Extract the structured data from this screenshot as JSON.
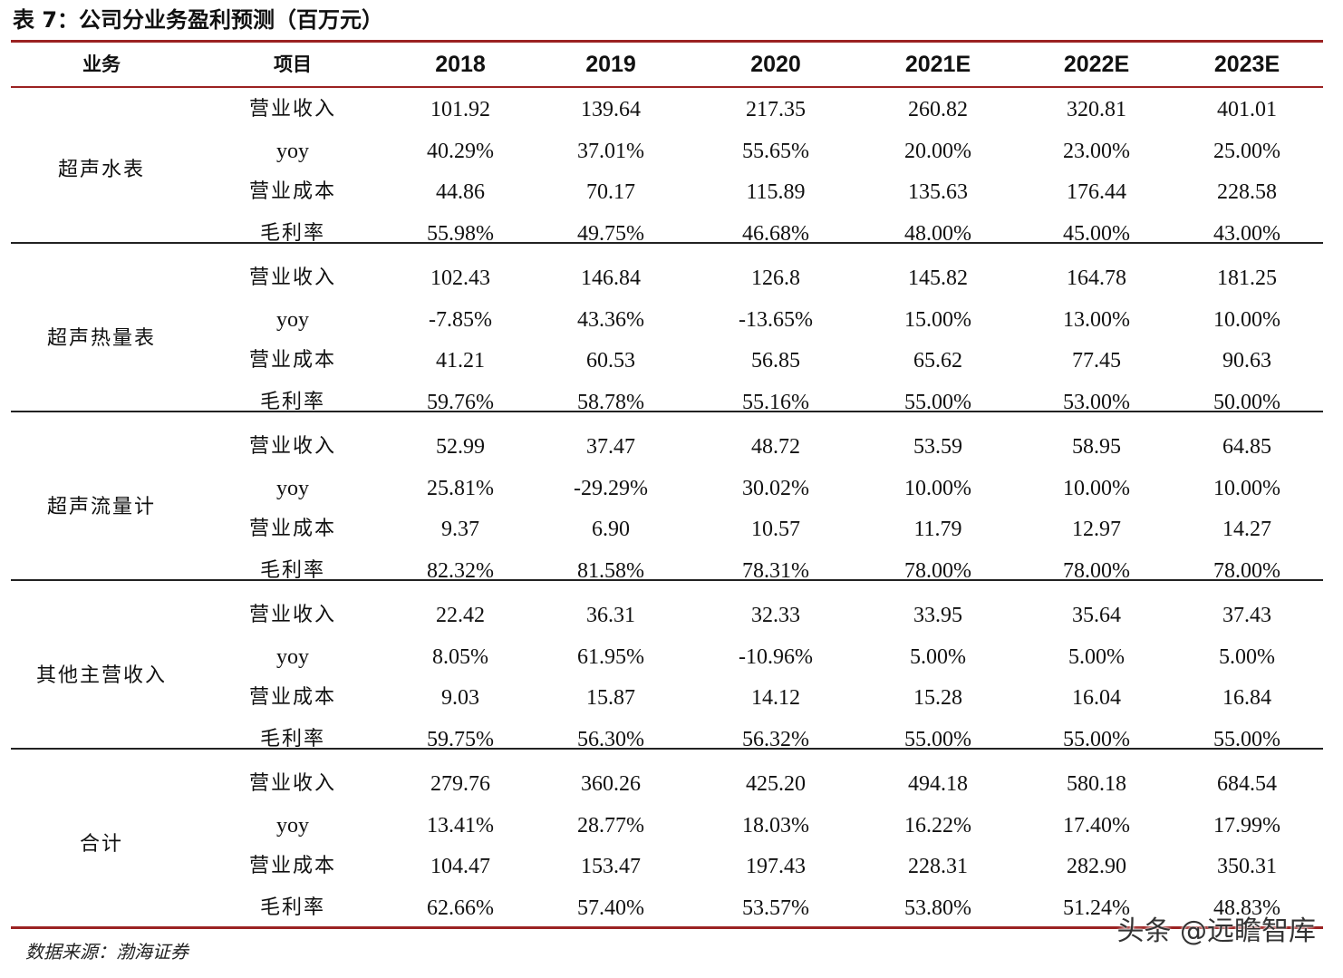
{
  "title": "表 7：公司分业务盈利预测（百万元）",
  "header": {
    "business": "业务",
    "item": "项目",
    "years": [
      "2018",
      "2019",
      "2020",
      "2021E",
      "2022E",
      "2023E"
    ]
  },
  "groups": [
    {
      "name": "超声水表",
      "rows": [
        {
          "item": "营业收入",
          "values": [
            "101.92",
            "139.64",
            "217.35",
            "260.82",
            "320.81",
            "401.01"
          ]
        },
        {
          "item": "yoy",
          "values": [
            "40.29%",
            "37.01%",
            "55.65%",
            "20.00%",
            "23.00%",
            "25.00%"
          ]
        },
        {
          "item": "营业成本",
          "values": [
            "44.86",
            "70.17",
            "115.89",
            "135.63",
            "176.44",
            "228.58"
          ]
        },
        {
          "item": "毛利率",
          "values": [
            "55.98%",
            "49.75%",
            "46.68%",
            "48.00%",
            "45.00%",
            "43.00%"
          ]
        }
      ]
    },
    {
      "name": "超声热量表",
      "rows": [
        {
          "item": "营业收入",
          "values": [
            "102.43",
            "146.84",
            "126.8",
            "145.82",
            "164.78",
            "181.25"
          ]
        },
        {
          "item": "yoy",
          "values": [
            "-7.85%",
            "43.36%",
            "-13.65%",
            "15.00%",
            "13.00%",
            "10.00%"
          ]
        },
        {
          "item": "营业成本",
          "values": [
            "41.21",
            "60.53",
            "56.85",
            "65.62",
            "77.45",
            "90.63"
          ]
        },
        {
          "item": "毛利率",
          "values": [
            "59.76%",
            "58.78%",
            "55.16%",
            "55.00%",
            "53.00%",
            "50.00%"
          ]
        }
      ]
    },
    {
      "name": "超声流量计",
      "rows": [
        {
          "item": "营业收入",
          "values": [
            "52.99",
            "37.47",
            "48.72",
            "53.59",
            "58.95",
            "64.85"
          ]
        },
        {
          "item": "yoy",
          "values": [
            "25.81%",
            "-29.29%",
            "30.02%",
            "10.00%",
            "10.00%",
            "10.00%"
          ]
        },
        {
          "item": "营业成本",
          "values": [
            "9.37",
            "6.90",
            "10.57",
            "11.79",
            "12.97",
            "14.27"
          ]
        },
        {
          "item": "毛利率",
          "values": [
            "82.32%",
            "81.58%",
            "78.31%",
            "78.00%",
            "78.00%",
            "78.00%"
          ]
        }
      ]
    },
    {
      "name": "其他主营收入",
      "rows": [
        {
          "item": "营业收入",
          "values": [
            "22.42",
            "36.31",
            "32.33",
            "33.95",
            "35.64",
            "37.43"
          ]
        },
        {
          "item": "yoy",
          "values": [
            "8.05%",
            "61.95%",
            "-10.96%",
            "5.00%",
            "5.00%",
            "5.00%"
          ]
        },
        {
          "item": "营业成本",
          "values": [
            "9.03",
            "15.87",
            "14.12",
            "15.28",
            "16.04",
            "16.84"
          ]
        },
        {
          "item": "毛利率",
          "values": [
            "59.75%",
            "56.30%",
            "56.32%",
            "55.00%",
            "55.00%",
            "55.00%"
          ]
        }
      ]
    },
    {
      "name": "合计",
      "rows": [
        {
          "item": "营业收入",
          "values": [
            "279.76",
            "360.26",
            "425.20",
            "494.18",
            "580.18",
            "684.54"
          ]
        },
        {
          "item": "yoy",
          "values": [
            "13.41%",
            "28.77%",
            "18.03%",
            "16.22%",
            "17.40%",
            "17.99%"
          ]
        },
        {
          "item": "营业成本",
          "values": [
            "104.47",
            "153.47",
            "197.43",
            "228.31",
            "282.90",
            "350.31"
          ]
        },
        {
          "item": "毛利率",
          "values": [
            "62.66%",
            "57.40%",
            "53.57%",
            "53.80%",
            "51.24%",
            "48.83%"
          ]
        }
      ]
    }
  ],
  "source": "数据来源：渤海证券",
  "watermark": "头条 @远瞻智库"
}
